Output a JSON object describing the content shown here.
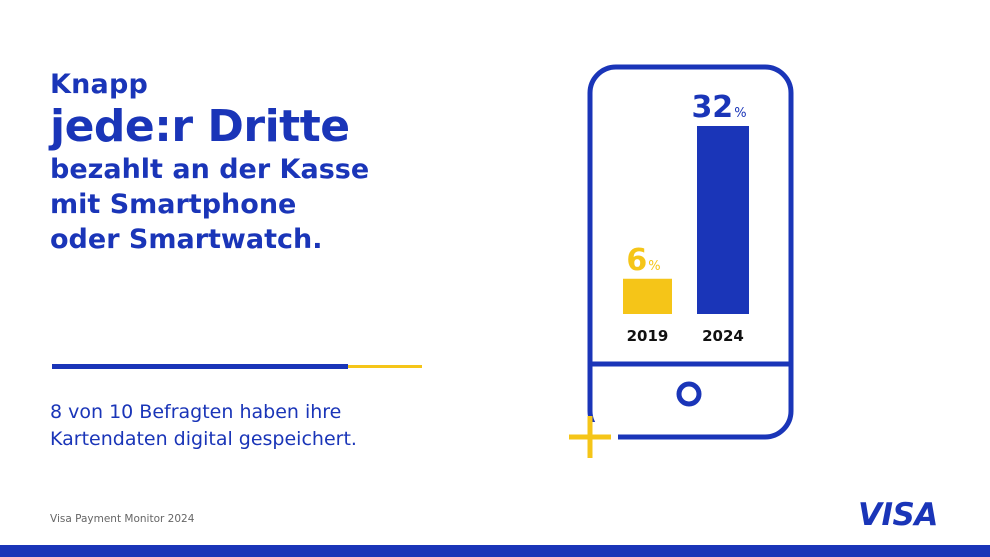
{
  "headline": {
    "line1": "Knapp",
    "line2": "jede:r Dritte",
    "line3": "bezahlt an der Kasse",
    "line4": "mit Smartphone",
    "line5": "oder Smartwatch."
  },
  "subtext": {
    "line1": "8 von 10 Befragten haben ihre",
    "line2": "Kartendaten digital gespeichert."
  },
  "source": "Visa Payment Monitor 2024",
  "logo": "VISA",
  "colors": {
    "blue": "#1a35b8",
    "yellow": "#f5c518"
  },
  "chart_data": {
    "type": "bar",
    "categories": [
      "2019",
      "2024"
    ],
    "values": [
      6,
      32
    ],
    "unit": "%",
    "value_labels": [
      "6",
      "32"
    ],
    "bar_colors": [
      "#f5c518",
      "#1a35b8"
    ],
    "title": "",
    "xlabel": "",
    "ylabel": ""
  }
}
